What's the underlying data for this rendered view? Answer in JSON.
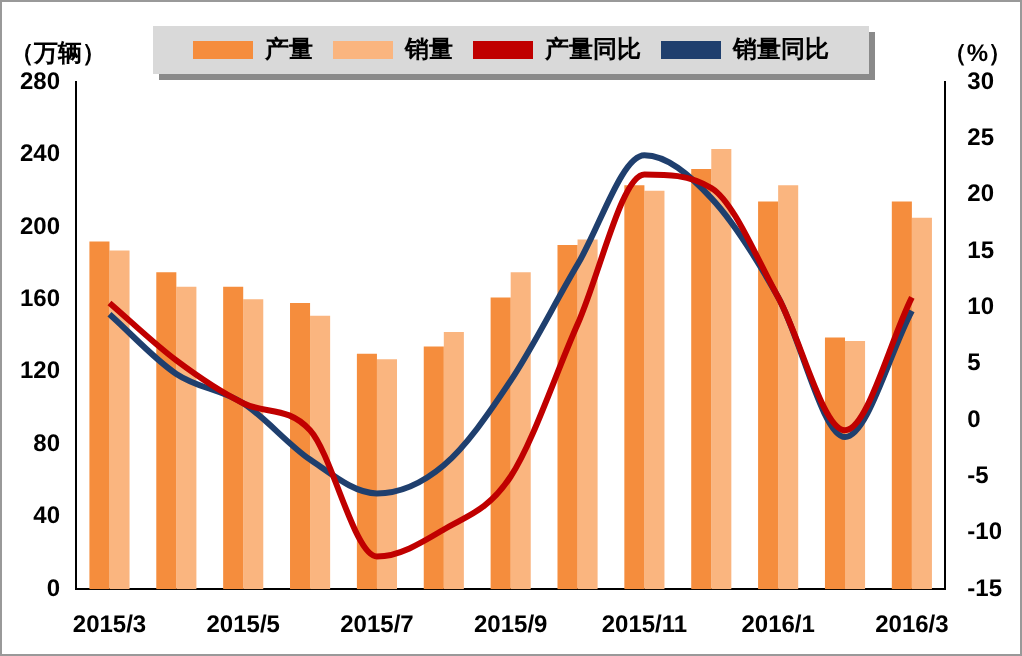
{
  "chart_data": {
    "type": "bar",
    "ylabel": "（万辆）",
    "y2label": "（%）",
    "categories": [
      "2015/3",
      null,
      "2015/5",
      null,
      "2015/7",
      null,
      "2015/9",
      null,
      "2015/11",
      null,
      "2016/1",
      null,
      "2016/3"
    ],
    "series": [
      {
        "name": "产量",
        "color": "#f58d3d",
        "values": [
          192,
          175,
          167,
          158,
          130,
          134,
          161,
          190,
          223,
          232,
          214,
          139,
          214
        ]
      },
      {
        "name": "销量",
        "color": "#fab57f",
        "values": [
          187,
          167,
          160,
          151,
          127,
          142,
          175,
          193,
          220,
          243,
          223,
          137,
          205
        ]
      },
      {
        "name": "产量同比",
        "type": "line",
        "axis": "y2",
        "color": "#c00000",
        "values": [
          10.4,
          5.3,
          1.5,
          -0.9,
          -12.1,
          -9.7,
          -5,
          8.5,
          21.8,
          20.6,
          10.9,
          -0.9,
          10.9
        ]
      },
      {
        "name": "销量同比",
        "type": "line",
        "axis": "y2",
        "color": "#1f3f6e",
        "values": [
          9.4,
          4.1,
          1.5,
          -3.5,
          -6.5,
          -4,
          3.5,
          13.8,
          23.5,
          19.7,
          10.9,
          -1.5,
          9.7
        ]
      }
    ],
    "ylim": [
      0,
      280
    ],
    "yticks": [
      0,
      40,
      80,
      120,
      160,
      200,
      240,
      280
    ],
    "y2lim": [
      -15,
      30
    ],
    "y2ticks": [
      -15,
      -10,
      -5,
      0,
      5,
      10,
      15,
      20,
      25,
      30
    ],
    "grid": false,
    "legend": "top",
    "marker": "none",
    "line_style": "solid"
  }
}
